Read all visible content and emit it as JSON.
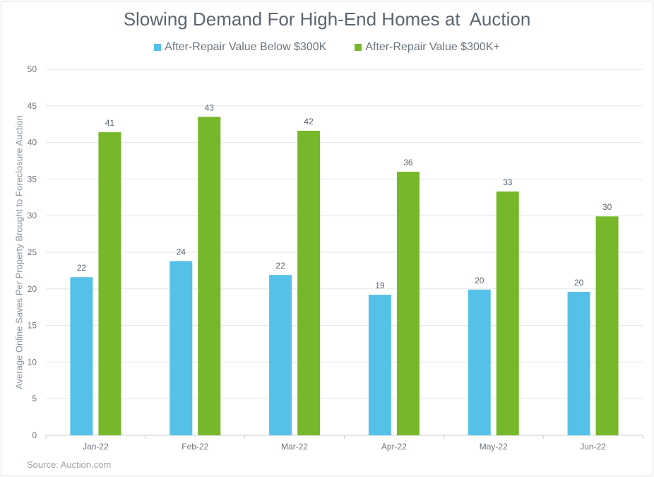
{
  "chart_data": {
    "type": "bar",
    "title": "Slowing Demand For High-End Homes at  Auction",
    "xlabel": "",
    "ylabel": "Average Online Saves Per Property Brought to Foreclosure Auction",
    "ylim": [
      0,
      50
    ],
    "yticks": [
      0,
      5,
      10,
      15,
      20,
      25,
      30,
      35,
      40,
      45,
      50
    ],
    "grid": true,
    "legend_position": "top-center",
    "categories": [
      "Jan-22",
      "Feb-22",
      "Mar-22",
      "Apr-22",
      "May-22",
      "Jun-22"
    ],
    "series": [
      {
        "name": "After-Repair Value Below $300K",
        "color": "#56c1e8",
        "values": [
          21.6,
          23.8,
          21.9,
          19.2,
          19.9,
          19.6
        ],
        "labels": [
          "22",
          "24",
          "22",
          "19",
          "20",
          "20"
        ]
      },
      {
        "name": "After-Repair Value $300K+",
        "color": "#76b82a",
        "values": [
          41.4,
          43.5,
          41.6,
          36.0,
          33.3,
          29.9
        ],
        "labels": [
          "41",
          "43",
          "42",
          "36",
          "33",
          "30"
        ]
      }
    ],
    "source": "Source: Auction.com"
  }
}
